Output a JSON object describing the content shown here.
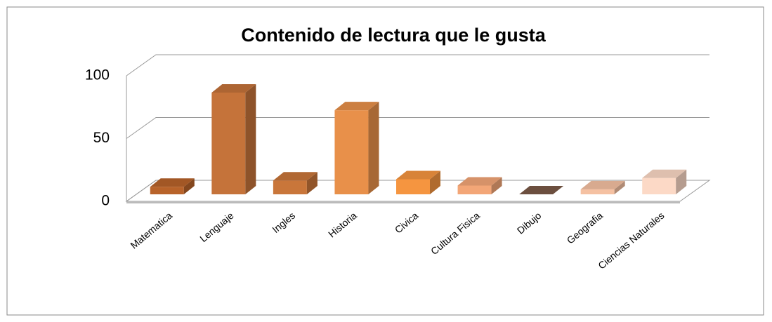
{
  "chart_data": {
    "type": "bar",
    "title": "Contenido de lectura que le gusta",
    "categories": [
      "Matematica",
      "Lenguaje",
      "Ingles",
      "Historia",
      "Civica",
      "Cultura Fisica",
      "Dibujo",
      "Geografia",
      "Ciencias Naturales"
    ],
    "values": [
      6,
      81,
      11,
      67,
      12,
      7,
      0,
      4,
      13
    ],
    "colors": [
      "#b8632a",
      "#c5733a",
      "#c9763a",
      "#e8904a",
      "#f59540",
      "#f3a677",
      "#7b5a48",
      "#f5c1a2",
      "#fcd9c6"
    ],
    "ylim": [
      0,
      100
    ],
    "yticks": [
      0,
      50,
      100
    ],
    "grid": true
  }
}
